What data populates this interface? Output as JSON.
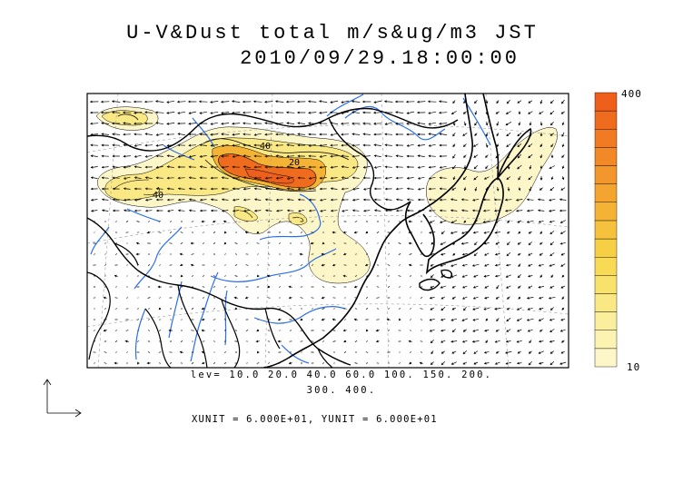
{
  "title": {
    "line1": "U-V&Dust total m/s&ug/m3 JST",
    "line2": "2010/09/29.18:00:00"
  },
  "colorbar": {
    "max_label": "400",
    "min_label": "10",
    "colors": [
      "#fdf6c8",
      "#fcf2b2",
      "#fbee9c",
      "#fae884",
      "#f9e26c",
      "#f8da54",
      "#f7cf45",
      "#f6c23d",
      "#f5b336",
      "#f4a530",
      "#f3962b",
      "#f28826",
      "#f17a22",
      "#ef6c1e",
      "#ed5f1a"
    ]
  },
  "levels_line1": "lev= 10.0 20.0 40.0 60.0 100. 150. 200.",
  "levels_line2": "300. 400.",
  "units_line": "XUNIT = 6.000E+01, YUNIT = 6.000E+01",
  "contour_labels": [
    "40",
    "20",
    "40"
  ]
}
